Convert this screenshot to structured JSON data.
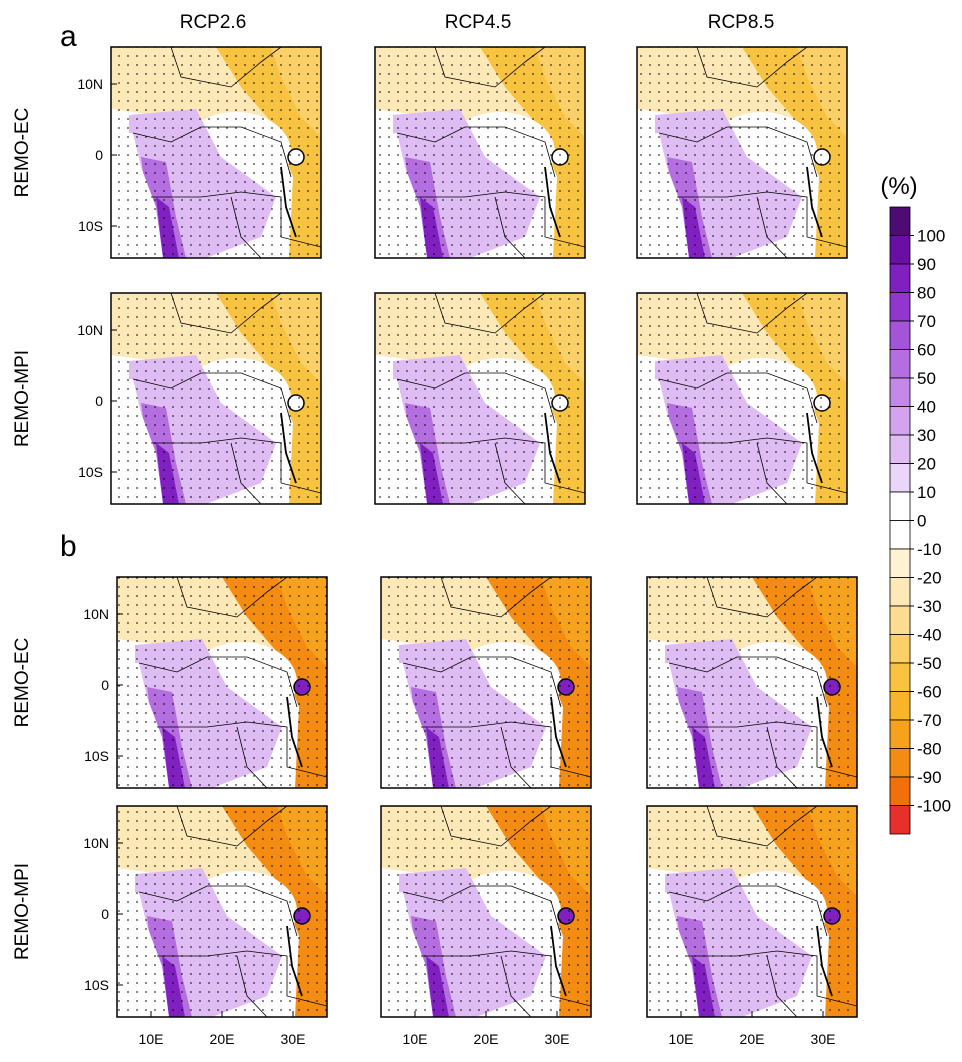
{
  "panels": [
    "a",
    "b"
  ],
  "columns": [
    "RCP2.6",
    "RCP4.5",
    "RCP8.5"
  ],
  "rows": [
    "REMO-EC",
    "REMO-MPI"
  ],
  "lat_labels": [
    "10N",
    "0",
    "10S"
  ],
  "lon_labels": [
    "10E",
    "20E",
    "30E"
  ],
  "colorbar": {
    "title": "(%)",
    "ticks": [
      100,
      90,
      80,
      70,
      60,
      50,
      40,
      30,
      20,
      10,
      0,
      -10,
      -20,
      -30,
      -40,
      -50,
      -60,
      -70,
      -80,
      -90,
      -100
    ],
    "colors": [
      "#4d0b73",
      "#6a0fa3",
      "#8020c0",
      "#9236d0",
      "#a354d8",
      "#b46ee0",
      "#c488e6",
      "#d3a3ee",
      "#dfbdf4",
      "#ebd5f8",
      "#ffffff",
      "#ffffff",
      "#fff2d2",
      "#fde8b8",
      "#fcdc90",
      "#fbd068",
      "#f9c342",
      "#f8b52a",
      "#f7a21c",
      "#f58c12",
      "#f36f0a",
      "#e8302a"
    ]
  }
}
